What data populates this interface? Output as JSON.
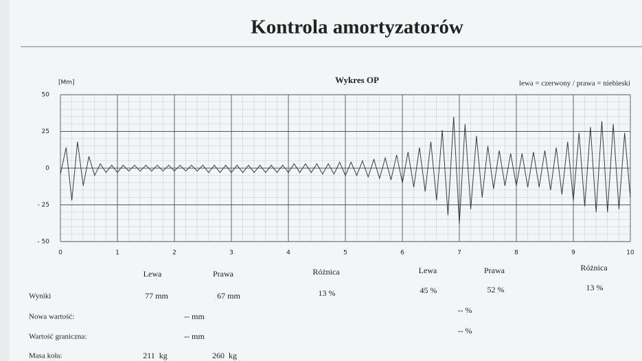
{
  "header": {
    "title": "Kontrola amortyzatorów"
  },
  "chart_data": {
    "type": "line",
    "title": "Wykres OP",
    "y_label": "[Mm]",
    "legend_note": "lewa = czerwony / prawa = niebieski",
    "color": "#3a3a3a",
    "grid": true,
    "xlim": [
      0,
      10
    ],
    "xticks": [
      0,
      1,
      2,
      3,
      4,
      5,
      6,
      7,
      8,
      9,
      10
    ],
    "ylim": [
      -50,
      50
    ],
    "yticks": [
      50,
      25,
      0,
      {
        "value": -25,
        "label": "- 25"
      },
      {
        "value": -50,
        "label": "- 50"
      }
    ],
    "x": [
      0,
      0.1,
      0.2,
      0.3,
      0.4,
      0.5,
      0.6,
      0.7,
      0.8,
      0.9,
      1,
      1.1,
      1.2,
      1.3,
      1.4,
      1.5,
      1.6,
      1.7,
      1.8,
      1.9,
      2,
      2.1,
      2.2,
      2.3,
      2.4,
      2.5,
      2.6,
      2.7,
      2.8,
      2.9,
      3,
      3.1,
      3.2,
      3.3,
      3.4,
      3.5,
      3.6,
      3.7,
      3.8,
      3.9,
      4,
      4.1,
      4.2,
      4.3,
      4.4,
      4.5,
      4.6,
      4.7,
      4.8,
      4.9,
      5,
      5.1,
      5.2,
      5.3,
      5.4,
      5.5,
      5.6,
      5.7,
      5.8,
      5.9,
      6,
      6.1,
      6.2,
      6.3,
      6.4,
      6.5,
      6.6,
      6.7,
      6.8,
      6.9,
      7,
      7.1,
      7.2,
      7.3,
      7.4,
      7.5,
      7.6,
      7.7,
      7.8,
      7.9,
      8,
      8.1,
      8.2,
      8.3,
      8.4,
      8.5,
      8.6,
      8.7,
      8.8,
      8.9,
      9,
      9.1,
      9.2,
      9.3,
      9.4,
      9.5,
      9.6,
      9.7,
      9.8,
      9.9,
      10
    ],
    "values": [
      -4,
      14,
      -22,
      18,
      -12,
      8,
      -5,
      3,
      -3,
      2,
      -3,
      2,
      -2,
      2,
      -2,
      2,
      -2,
      2,
      -2,
      2,
      -2,
      2,
      -2,
      2,
      -2,
      2,
      -3,
      2,
      -3,
      2,
      -3,
      2,
      -3,
      2,
      -3,
      2,
      -3,
      2,
      -3,
      2,
      -3,
      3,
      -3,
      3,
      -3,
      3,
      -4,
      3,
      -4,
      4,
      -5,
      4,
      -5,
      5,
      -6,
      6,
      -7,
      7,
      -8,
      9,
      -10,
      11,
      -13,
      14,
      -16,
      18,
      -22,
      26,
      -32,
      35,
      -38,
      30,
      -28,
      22,
      -20,
      15,
      -14,
      12,
      -12,
      10,
      -12,
      10,
      -13,
      11,
      -13,
      12,
      -15,
      14,
      -18,
      18,
      -22,
      24,
      -26,
      28,
      -30,
      32,
      -30,
      30,
      -28,
      24,
      -20
    ]
  },
  "table": {
    "headers": [
      "Lewa",
      "Prawa",
      "Różnica",
      "Lewa",
      "Prawa",
      "Różnica"
    ],
    "rows": [
      {
        "label": "Wyniki",
        "cells": [
          "77 mm",
          "67 mm",
          "13 %",
          "45 %",
          "52 %",
          "13 %"
        ]
      },
      {
        "label": "Nowa wartość:",
        "cells": [
          "-- mm",
          "-- %"
        ]
      },
      {
        "label": "Wartość graniczna:",
        "cells": [
          "-- mm",
          "-- %"
        ]
      },
      {
        "label": "Masa koła:",
        "cells": [
          "211  kg",
          "260  kg"
        ]
      }
    ]
  }
}
